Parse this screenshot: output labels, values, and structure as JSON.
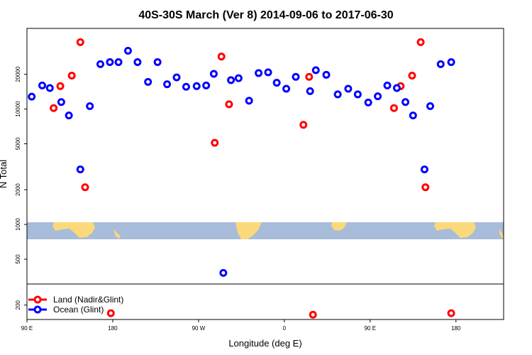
{
  "chart_data": {
    "type": "scatter",
    "title": "40S-30S March (Ver 8)   2014-09-06 to 2017-06-30",
    "xlabel": "Longitude (deg E)",
    "ylabel": "N Total",
    "y_scale": "log",
    "xlim": [
      90,
      590
    ],
    "ylim": [
      150,
      50000
    ],
    "x_ticks": [
      {
        "value": 90,
        "label": "90 E"
      },
      {
        "value": 180,
        "label": "180"
      },
      {
        "value": 270,
        "label": "90 W"
      },
      {
        "value": 360,
        "label": "0"
      },
      {
        "value": 450,
        "label": "90 E"
      },
      {
        "value": 540,
        "label": "180"
      }
    ],
    "y_ticks": [
      {
        "value": 200,
        "label": "200"
      },
      {
        "value": 500,
        "label": "500"
      },
      {
        "value": 1000,
        "label": "1000"
      },
      {
        "value": 2000,
        "label": "2000"
      },
      {
        "value": 5000,
        "label": "5000"
      },
      {
        "value": 10000,
        "label": "10000"
      },
      {
        "value": 20000,
        "label": "20000"
      }
    ],
    "legend": {
      "position": "bottom-left",
      "entries": [
        {
          "label": "Land (Nadir&Glint)",
          "color": "#ff0000"
        },
        {
          "label": "Ocean (Glint)",
          "color": "#0000ff"
        }
      ]
    },
    "series": [
      {
        "name": "Land (Nadir&Glint)",
        "color": "#ff0000",
        "points": [
          [
            118,
            10200
          ],
          [
            125,
            15800
          ],
          [
            137,
            19500
          ],
          [
            146,
            38000
          ],
          [
            151,
            2100
          ],
          [
            178,
            170
          ],
          [
            287,
            5100
          ],
          [
            294,
            28500
          ],
          [
            302,
            11000
          ],
          [
            380,
            7300
          ],
          [
            386,
            19000
          ],
          [
            390,
            165
          ],
          [
            475,
            10200
          ],
          [
            482,
            15800
          ],
          [
            494,
            19500
          ],
          [
            503,
            38000
          ],
          [
            508,
            2100
          ],
          [
            535,
            170
          ]
        ]
      },
      {
        "name": "Ocean (Glint)",
        "color": "#0000ff",
        "points": [
          [
            95,
            12800
          ],
          [
            106,
            16000
          ],
          [
            114,
            15200
          ],
          [
            126,
            11500
          ],
          [
            134,
            8800
          ],
          [
            146,
            3000
          ],
          [
            156,
            10600
          ],
          [
            167,
            24500
          ],
          [
            177,
            25500
          ],
          [
            186,
            25500
          ],
          [
            196,
            32000
          ],
          [
            206,
            25500
          ],
          [
            217,
            17200
          ],
          [
            227,
            25500
          ],
          [
            237,
            16400
          ],
          [
            247,
            18800
          ],
          [
            257,
            15600
          ],
          [
            268,
            15800
          ],
          [
            278,
            16000
          ],
          [
            286,
            20200
          ],
          [
            296,
            380
          ],
          [
            304,
            17800
          ],
          [
            312,
            18500
          ],
          [
            323,
            11800
          ],
          [
            333,
            20500
          ],
          [
            343,
            20800
          ],
          [
            352,
            16900
          ],
          [
            362,
            15000
          ],
          [
            372,
            19000
          ],
          [
            387,
            14300
          ],
          [
            393,
            21700
          ],
          [
            404,
            19800
          ],
          [
            416,
            13400
          ],
          [
            427,
            15000
          ],
          [
            437,
            13400
          ],
          [
            448,
            11400
          ],
          [
            458,
            12900
          ],
          [
            468,
            16000
          ],
          [
            478,
            15200
          ],
          [
            487,
            11500
          ],
          [
            495,
            8800
          ],
          [
            507,
            3000
          ],
          [
            513,
            10600
          ],
          [
            524,
            24500
          ],
          [
            535,
            25500
          ]
        ]
      }
    ]
  }
}
